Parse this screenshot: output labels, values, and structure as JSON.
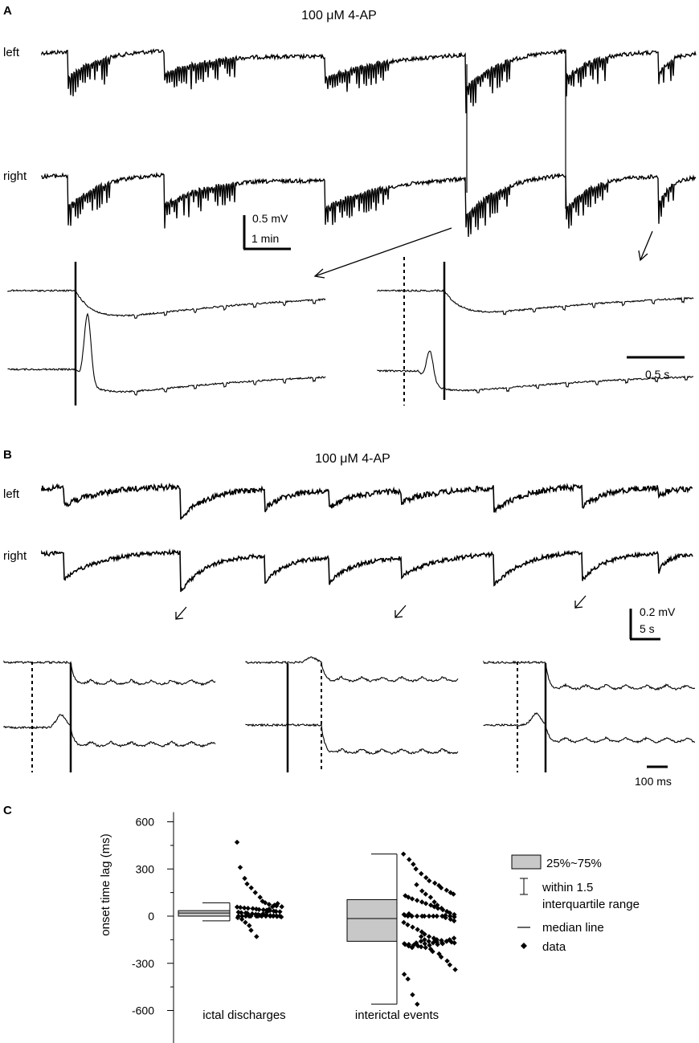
{
  "figure": {
    "panel_a": {
      "letter": "A",
      "condition": "100 μM 4-AP",
      "trace_left": "left",
      "trace_right": "right",
      "scale_voltage": "0.5 mV",
      "scale_time": "1 min",
      "inset_scale": "0.5 s"
    },
    "panel_b": {
      "letter": "B",
      "condition": "100 μM 4-AP",
      "trace_left": "left",
      "trace_right": "right",
      "scale_voltage": "0.2 mV",
      "scale_time": "5 s",
      "inset_scale": "100 ms"
    },
    "panel_c": {
      "letter": "C"
    }
  },
  "chart_data": {
    "type": "scatter",
    "ylabel": "onset time lag (ms)",
    "xlabel": "",
    "ylim": [
      -700,
      600
    ],
    "yticks": [
      600,
      300,
      0,
      -300,
      -600
    ],
    "ytick_labels": [
      "600",
      "300",
      "0",
      "-300",
      "-600"
    ],
    "categories": [
      "ictal discharges",
      "interictal events"
    ],
    "groups": [
      {
        "category": "ictal discharges",
        "box": {
          "q1": 0,
          "q3": 35,
          "median": 20
        },
        "whisker": {
          "low": -30,
          "high": 85
        },
        "points": [
          470,
          310,
          240,
          205,
          180,
          150,
          120,
          95,
          85,
          75,
          70,
          65,
          60,
          58,
          55,
          52,
          50,
          48,
          45,
          42,
          40,
          38,
          35,
          32,
          30,
          28,
          25,
          22,
          20,
          18,
          15,
          12,
          10,
          8,
          6,
          4,
          3,
          2,
          1,
          0,
          0,
          0,
          0,
          0,
          0,
          0,
          0,
          0,
          0,
          0,
          -2,
          -5,
          -10,
          -20,
          -40,
          -60,
          -90,
          -130,
          5,
          15,
          25,
          45,
          60,
          80
        ]
      },
      {
        "category": "interictal events",
        "box": {
          "q1": -160,
          "q3": 105,
          "median": -15
        },
        "whisker": {
          "low": -560,
          "high": 395
        },
        "points": [
          395,
          360,
          330,
          300,
          270,
          245,
          225,
          210,
          195,
          180,
          165,
          150,
          140,
          130,
          120,
          110,
          100,
          90,
          80,
          70,
          60,
          50,
          40,
          30,
          20,
          10,
          5,
          0,
          0,
          0,
          0,
          0,
          0,
          0,
          0,
          0,
          -10,
          -20,
          -30,
          -40,
          -55,
          -70,
          -85,
          -100,
          -115,
          -130,
          -140,
          -150,
          -155,
          -160,
          -165,
          -170,
          -175,
          -180,
          -185,
          -190,
          -195,
          -200,
          -210,
          -225,
          -240,
          -260,
          -285,
          -310,
          -340,
          -370,
          -400,
          -500,
          -560,
          -130,
          -150,
          -160,
          -170,
          -180,
          -170,
          -160,
          -150,
          -140,
          -180,
          -190,
          -200,
          -170,
          -160,
          -175,
          -185,
          -150,
          -165,
          -175,
          5,
          0,
          -5,
          10,
          15,
          0,
          200,
          160,
          140,
          120,
          90,
          70,
          50
        ]
      }
    ],
    "legend": [
      {
        "key": "box",
        "label": "25%~75%"
      },
      {
        "key": "whisker",
        "label": "within 1.5"
      },
      {
        "key": "whisker2",
        "label": "interquartile range"
      },
      {
        "key": "median",
        "label": "median line"
      },
      {
        "key": "data",
        "label": "data"
      }
    ],
    "legend_position": "right",
    "box_color": "#c8c8c8",
    "point_color": "#000000"
  }
}
